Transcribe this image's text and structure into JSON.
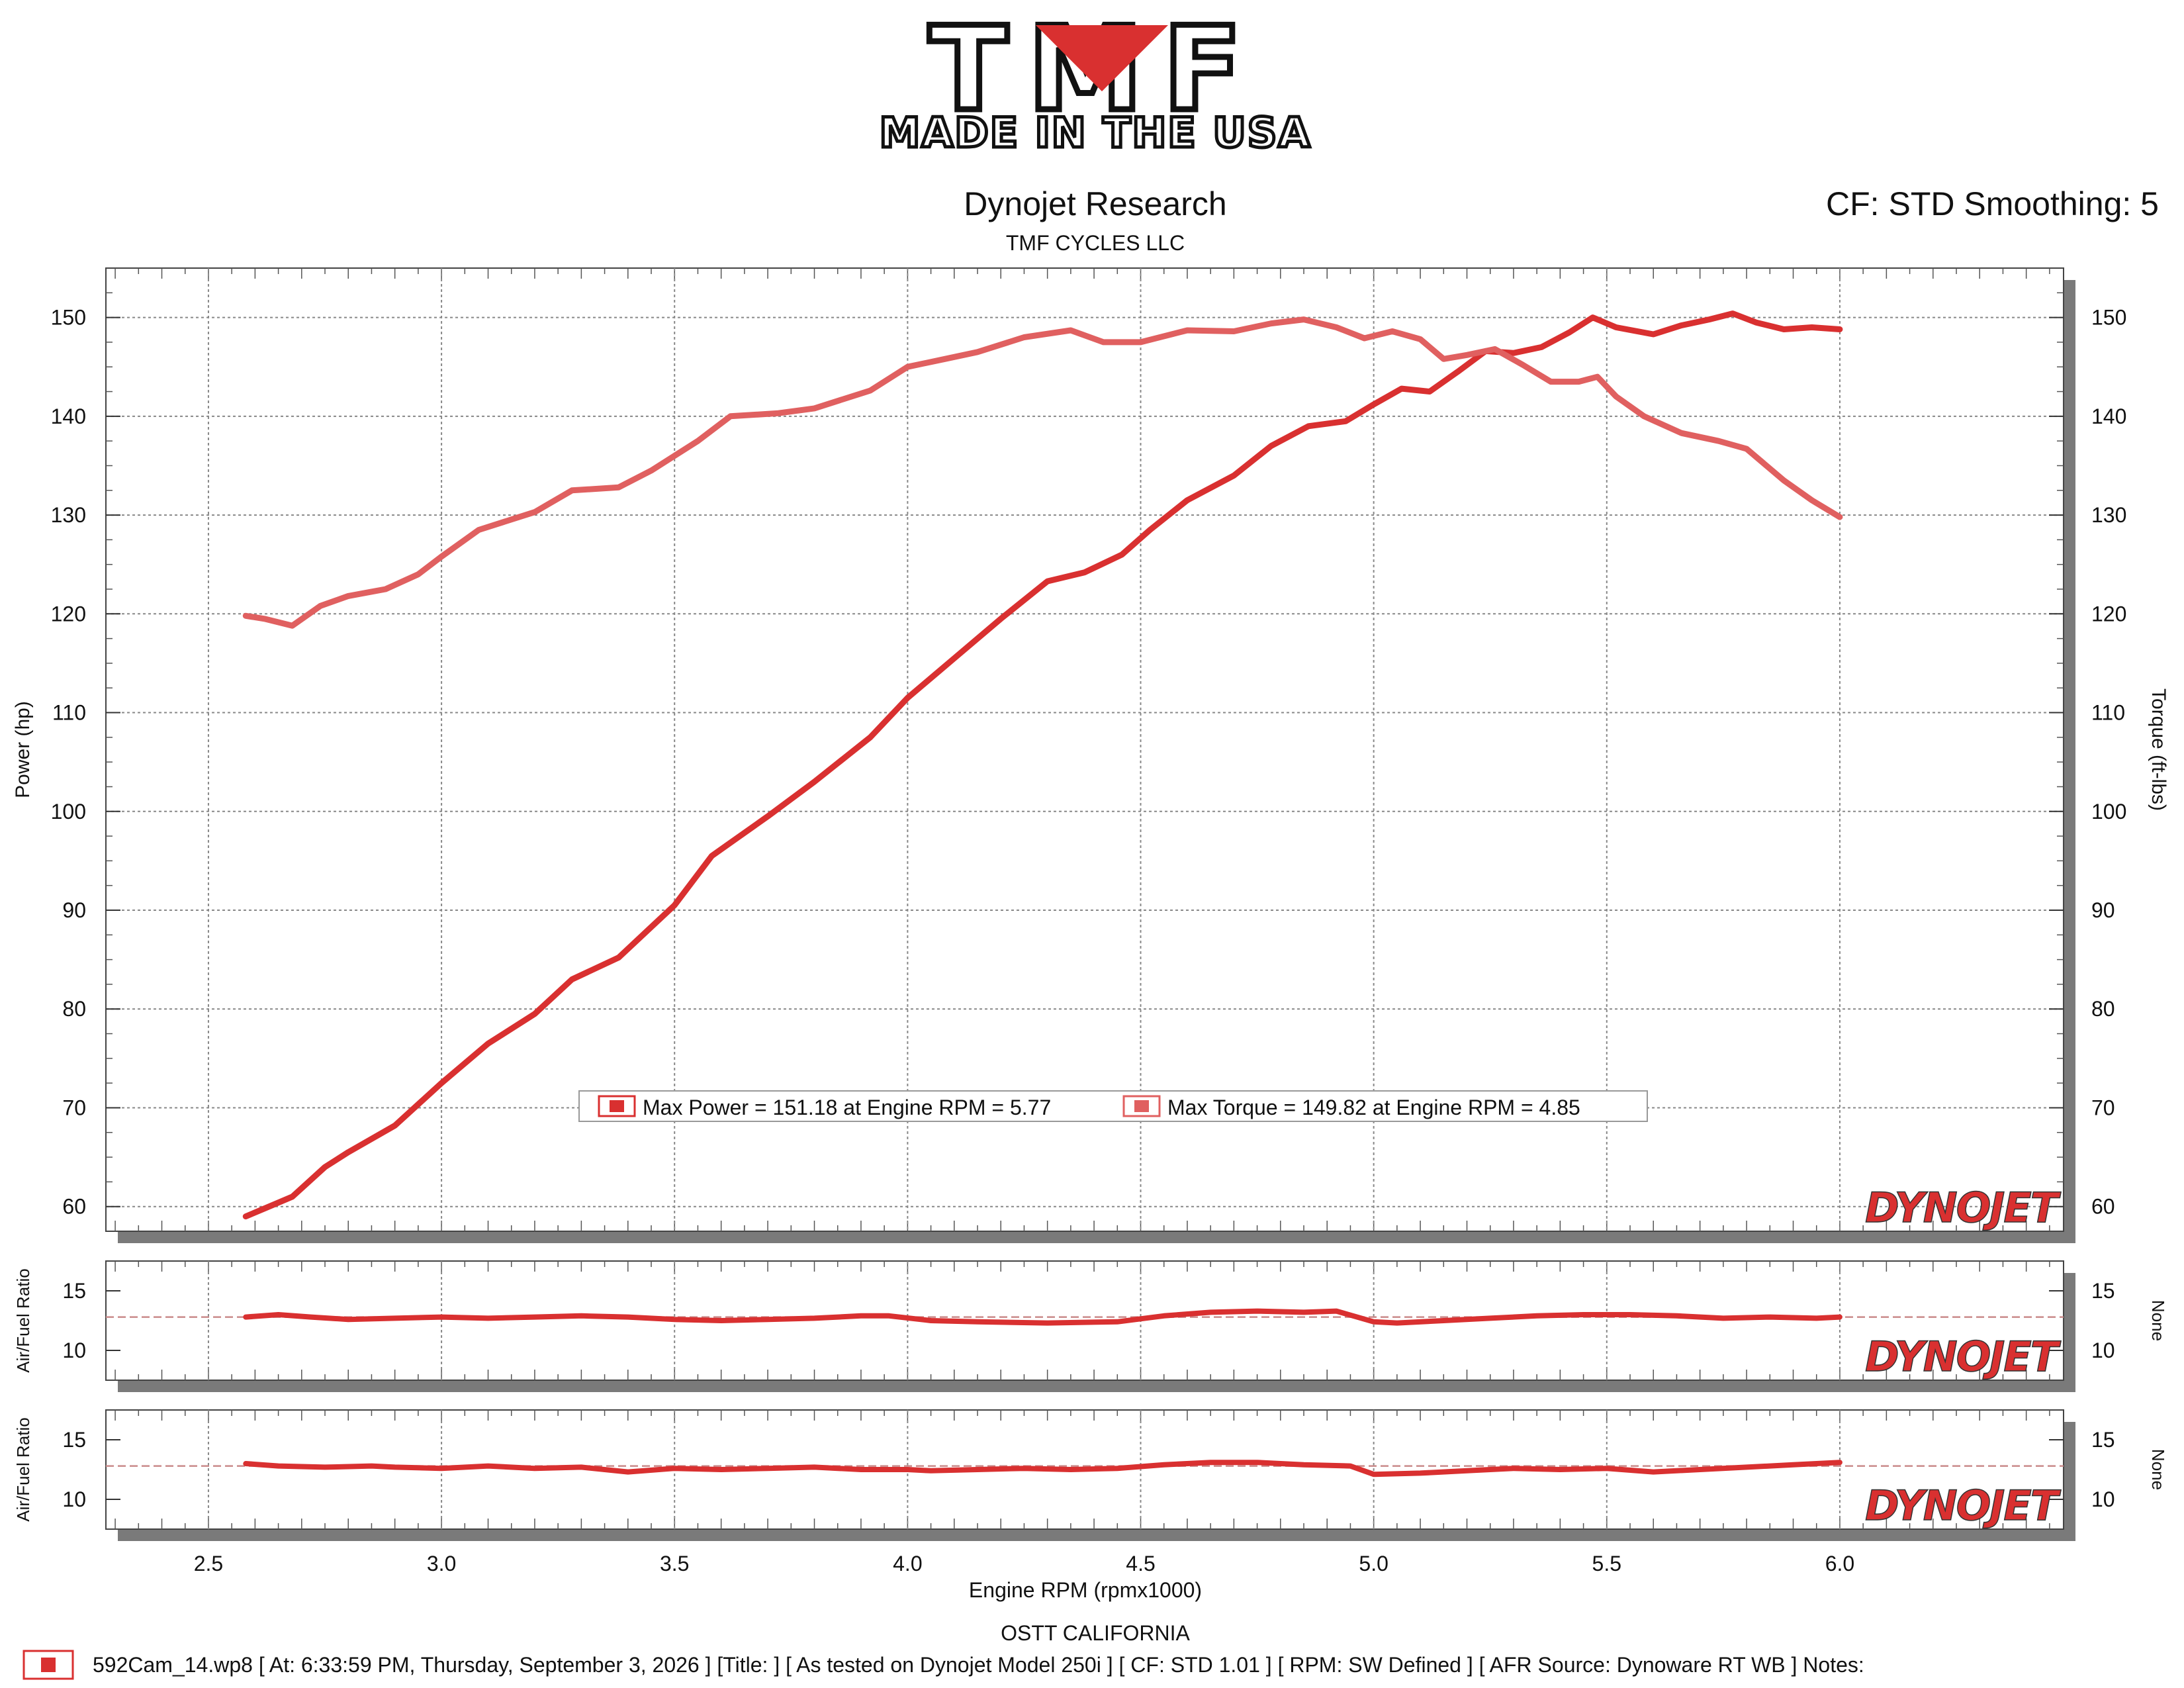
{
  "header": {
    "logo_text": "TMF",
    "logo_tagline": "MADE IN THE USA",
    "title": "Dynojet Research",
    "subtitle": "TMF CYCLES LLC",
    "cf_label": "CF: STD Smoothing: 5"
  },
  "footer": {
    "location": "OSTT CALIFORNIA",
    "run_info": "592Cam_14.wp8 [ At: 6:33:59 PM, Thursday, September 3, 2026 ] [Title: ]  [ As tested on Dynojet Model 250i ] [ CF: STD 1.01 ] [ RPM: SW Defined ] [ AFR Source: Dynoware RT WB ] Notes:"
  },
  "watermark": "DYNOJET",
  "colors": {
    "power": "#d93030",
    "torque": "#e06060",
    "afr_ref": "#c98a8a",
    "grid": "#888888",
    "frame_shadow": "#7a7a7a"
  },
  "chart_data": [
    {
      "type": "line",
      "xlabel": "Engine RPM (rpmx1000)",
      "ylabel": "Power (hp)",
      "y2label": "Torque (ft-lbs)",
      "xlim": [
        2.28,
        6.48
      ],
      "ylim": [
        57.5,
        155
      ],
      "xticks": [
        "2.5",
        "3.0",
        "3.5",
        "4.0",
        "4.5",
        "5.0",
        "5.5",
        "6.0"
      ],
      "yticks": [
        "60",
        "70",
        "80",
        "90",
        "100",
        "110",
        "120",
        "130",
        "140",
        "150"
      ],
      "legend": [
        {
          "label": "Max Power = 151.18 at Engine RPM = 5.77",
          "color": "#d93030"
        },
        {
          "label": "Max Torque = 149.82 at Engine RPM = 4.85",
          "color": "#e06060"
        }
      ],
      "series": [
        {
          "name": "Power",
          "color": "#d93030",
          "x": [
            2.58,
            2.62,
            2.68,
            2.75,
            2.8,
            2.9,
            3.0,
            3.1,
            3.2,
            3.28,
            3.38,
            3.5,
            3.58,
            3.7,
            3.8,
            3.92,
            4.0,
            4.1,
            4.2,
            4.3,
            4.38,
            4.46,
            4.52,
            4.6,
            4.7,
            4.78,
            4.86,
            4.94,
            5.0,
            5.06,
            5.12,
            5.18,
            5.24,
            5.3,
            5.36,
            5.42,
            5.47,
            5.52,
            5.6,
            5.66,
            5.72,
            5.77,
            5.82,
            5.88,
            5.94,
            6.0
          ],
          "values": [
            59,
            59.8,
            61,
            64,
            65.5,
            68.2,
            72.5,
            76.5,
            79.5,
            83,
            85.2,
            90.5,
            95.5,
            99.5,
            103,
            107.5,
            111.5,
            115.5,
            119.5,
            123.3,
            124.2,
            126,
            128.5,
            131.5,
            134,
            137,
            139,
            139.5,
            141.2,
            142.8,
            142.5,
            144.5,
            146.6,
            146.4,
            147,
            148.5,
            150,
            149,
            148.3,
            149.2,
            149.8,
            150.4,
            149.5,
            148.8,
            149,
            148.8
          ]
        },
        {
          "name": "Torque",
          "color": "#e06060",
          "axis": "y2",
          "x": [
            2.58,
            2.62,
            2.68,
            2.74,
            2.8,
            2.88,
            2.95,
            3.0,
            3.08,
            3.2,
            3.28,
            3.38,
            3.45,
            3.55,
            3.62,
            3.72,
            3.8,
            3.92,
            4.0,
            4.08,
            4.15,
            4.25,
            4.35,
            4.42,
            4.5,
            4.6,
            4.7,
            4.78,
            4.85,
            4.92,
            4.98,
            5.04,
            5.1,
            5.15,
            5.2,
            5.26,
            5.32,
            5.38,
            5.44,
            5.48,
            5.52,
            5.58,
            5.66,
            5.74,
            5.8,
            5.88,
            5.94,
            6.0
          ],
          "values": [
            119.8,
            119.5,
            118.8,
            120.8,
            121.8,
            122.5,
            124,
            125.8,
            128.5,
            130.3,
            132.5,
            132.8,
            134.5,
            137.5,
            140,
            140.3,
            140.8,
            142.6,
            145,
            145.8,
            146.5,
            148,
            148.7,
            147.5,
            147.5,
            148.7,
            148.6,
            149.4,
            149.8,
            149,
            147.9,
            148.6,
            147.8,
            145.8,
            146.2,
            146.8,
            145.2,
            143.5,
            143.5,
            144,
            142,
            140,
            138.3,
            137.5,
            136.7,
            133.5,
            131.5,
            129.8
          ]
        }
      ]
    },
    {
      "type": "line",
      "ylabel": "Air/Fuel Ratio",
      "y2label": "None",
      "xlim": [
        2.28,
        6.48
      ],
      "ylim": [
        7.5,
        17.5
      ],
      "yticks": [
        "10",
        "15"
      ],
      "reference_line": 12.8,
      "series": [
        {
          "name": "Air/Fuel Ratio",
          "color": "#d93030",
          "x": [
            2.58,
            2.65,
            2.72,
            2.8,
            2.9,
            3.0,
            3.1,
            3.2,
            3.3,
            3.4,
            3.5,
            3.6,
            3.7,
            3.8,
            3.9,
            3.96,
            4.05,
            4.15,
            4.3,
            4.45,
            4.55,
            4.65,
            4.75,
            4.85,
            4.92,
            5.0,
            5.05,
            5.15,
            5.25,
            5.35,
            5.45,
            5.55,
            5.65,
            5.75,
            5.85,
            5.95,
            6.0
          ],
          "values": [
            12.8,
            13.0,
            12.8,
            12.6,
            12.7,
            12.8,
            12.7,
            12.8,
            12.9,
            12.8,
            12.6,
            12.5,
            12.6,
            12.7,
            12.9,
            12.9,
            12.5,
            12.4,
            12.3,
            12.4,
            12.9,
            13.2,
            13.3,
            13.2,
            13.3,
            12.4,
            12.3,
            12.5,
            12.7,
            12.9,
            13.0,
            13.0,
            12.9,
            12.7,
            12.8,
            12.7,
            12.8
          ]
        }
      ]
    },
    {
      "type": "line",
      "ylabel": "Air/Fuel Ratio",
      "y2label": "None",
      "xlim": [
        2.28,
        6.48
      ],
      "ylim": [
        7.5,
        17.5
      ],
      "yticks": [
        "10",
        "15"
      ],
      "reference_line": 12.8,
      "series": [
        {
          "name": "Air/Fuel Ratio",
          "color": "#d93030",
          "x": [
            2.58,
            2.65,
            2.75,
            2.85,
            2.9,
            3.0,
            3.1,
            3.2,
            3.3,
            3.4,
            3.5,
            3.6,
            3.7,
            3.8,
            3.9,
            4.0,
            4.05,
            4.15,
            4.25,
            4.35,
            4.45,
            4.55,
            4.65,
            4.75,
            4.85,
            4.95,
            5.0,
            5.1,
            5.2,
            5.3,
            5.4,
            5.5,
            5.6,
            5.7,
            5.8,
            5.9,
            6.0
          ],
          "values": [
            13.0,
            12.8,
            12.7,
            12.8,
            12.7,
            12.6,
            12.8,
            12.6,
            12.7,
            12.3,
            12.6,
            12.5,
            12.6,
            12.7,
            12.5,
            12.5,
            12.4,
            12.5,
            12.6,
            12.5,
            12.6,
            12.9,
            13.1,
            13.1,
            12.9,
            12.8,
            12.1,
            12.2,
            12.4,
            12.6,
            12.5,
            12.6,
            12.3,
            12.5,
            12.7,
            12.9,
            13.1
          ]
        }
      ]
    }
  ]
}
